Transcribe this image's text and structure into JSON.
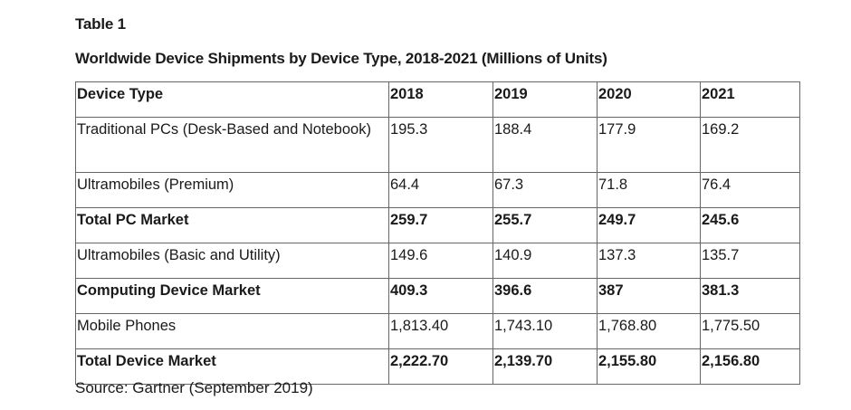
{
  "table_label": "Table 1",
  "title": "Worldwide Device Shipments by Device Type, 2018-2021 (Millions of Units)",
  "headers": [
    "Device Type",
    "2018",
    "2019",
    "2020",
    "2021"
  ],
  "rows": [
    {
      "cells": [
        "Traditional PCs (Desk-Based and Notebook)",
        "195.3",
        "188.4",
        "177.9",
        "169.2"
      ],
      "bold": false
    },
    {
      "cells": [
        "Ultramobiles (Premium)",
        "64.4",
        "67.3",
        "71.8",
        "76.4"
      ],
      "bold": false
    },
    {
      "cells": [
        "Total PC Market",
        "259.7",
        "255.7",
        "249.7",
        "245.6"
      ],
      "bold": true
    },
    {
      "cells": [
        "Ultramobiles (Basic and Utility)",
        "149.6",
        "140.9",
        "137.3",
        "135.7"
      ],
      "bold": false
    },
    {
      "cells": [
        "Computing Device Market",
        "409.3",
        "396.6",
        "387",
        "381.3"
      ],
      "bold": true
    },
    {
      "cells": [
        "Mobile Phones",
        "1,813.40",
        "1,743.10",
        "1,768.80",
        "1,775.50"
      ],
      "bold": false
    },
    {
      "cells": [
        "Total Device Market",
        "2,222.70",
        "2,139.70",
        "2,155.80",
        "2,156.80"
      ],
      "bold": true
    }
  ],
  "source": "Source: Gartner (September 2019)"
}
